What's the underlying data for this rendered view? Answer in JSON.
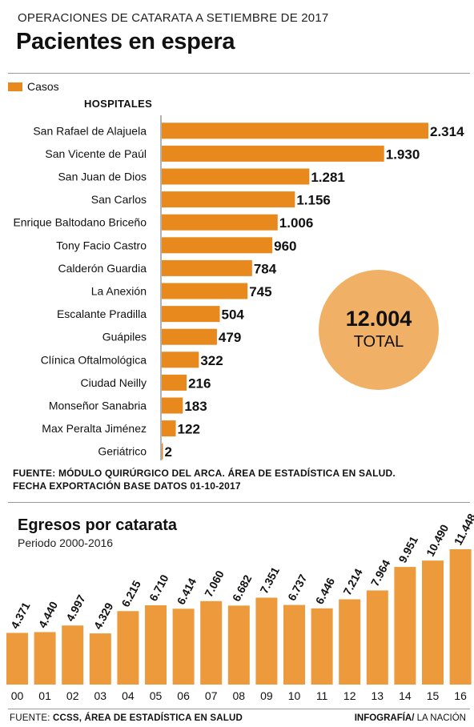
{
  "header": {
    "kicker": "OPERACIONES DE CATARATA A SETIEMBRE DE 2017",
    "title": "Pacientes en espera"
  },
  "colors": {
    "bar": "#E8891E",
    "total_circle": "#F0B066",
    "bar2": "#EC9A3C"
  },
  "legend_label": "Casos",
  "hospitals_header": "HOSPITALES",
  "total": {
    "value": "12.004",
    "label": "TOTAL"
  },
  "source1": {
    "line1_prefix": "FUENTE: ",
    "line1_text": "MÓDULO QUIRÚRGICO DEL ARCA. ÁREA DE ESTADÍSTICA EN SALUD.",
    "line2": "FECHA EXPORTACIÓN BASE DATOS 01-10-2017"
  },
  "chart2_header": {
    "title": "Egresos por catarata",
    "subtitle": "Periodo 2000-2016"
  },
  "footer": {
    "source_prefix": "FUENTE: ",
    "source_text": "CCSS, ÁREA DE ESTADÍSTICA EN SALUD",
    "credit_bold": "INFOGRAFÍA/",
    "credit_rest": " LA NACIÓN"
  },
  "chart_data": [
    {
      "type": "bar",
      "orientation": "horizontal",
      "title": "Pacientes en espera",
      "legend": [
        "Casos"
      ],
      "categories": [
        "San Rafael de Alajuela",
        "San Vicente de Paúl",
        "San Juan de Dios",
        "San Carlos",
        "Enrique Baltodano Briceño",
        "Tony Facio Castro",
        "Calderón Guardia",
        "La Anexión",
        "Escalante Pradilla",
        "Guápiles",
        "Clínica Oftalmológica",
        "Ciudad Neilly",
        "Monseñor Sanabria",
        "Max Peralta Jiménez",
        "Geriátrico"
      ],
      "values": [
        2314,
        1930,
        1281,
        1156,
        1006,
        960,
        784,
        745,
        504,
        479,
        322,
        216,
        183,
        122,
        2
      ],
      "labels": [
        "2.314",
        "1.930",
        "1.281",
        "1.156",
        "1.006",
        "960",
        "784",
        "745",
        "504",
        "479",
        "322",
        "216",
        "183",
        "122",
        "2"
      ],
      "xlim": [
        0,
        2314
      ]
    },
    {
      "type": "bar",
      "title": "Egresos por catarata",
      "subtitle": "Periodo 2000-2016",
      "categories": [
        "00",
        "01",
        "02",
        "03",
        "04",
        "05",
        "06",
        "07",
        "08",
        "09",
        "10",
        "11",
        "12",
        "13",
        "14",
        "15",
        "16"
      ],
      "values": [
        4371,
        4440,
        4997,
        4329,
        6215,
        6710,
        6414,
        7060,
        6682,
        7351,
        6737,
        6446,
        7214,
        7964,
        9951,
        10490,
        11448
      ],
      "labels": [
        "4.371",
        "4.440",
        "4.997",
        "4.329",
        "6.215",
        "6.710",
        "6.414",
        "7.060",
        "6.682",
        "7.351",
        "6.737",
        "6.446",
        "7.214",
        "7.964",
        "9.951",
        "10.490",
        "11.448"
      ],
      "ylim": [
        0,
        11448
      ]
    }
  ]
}
